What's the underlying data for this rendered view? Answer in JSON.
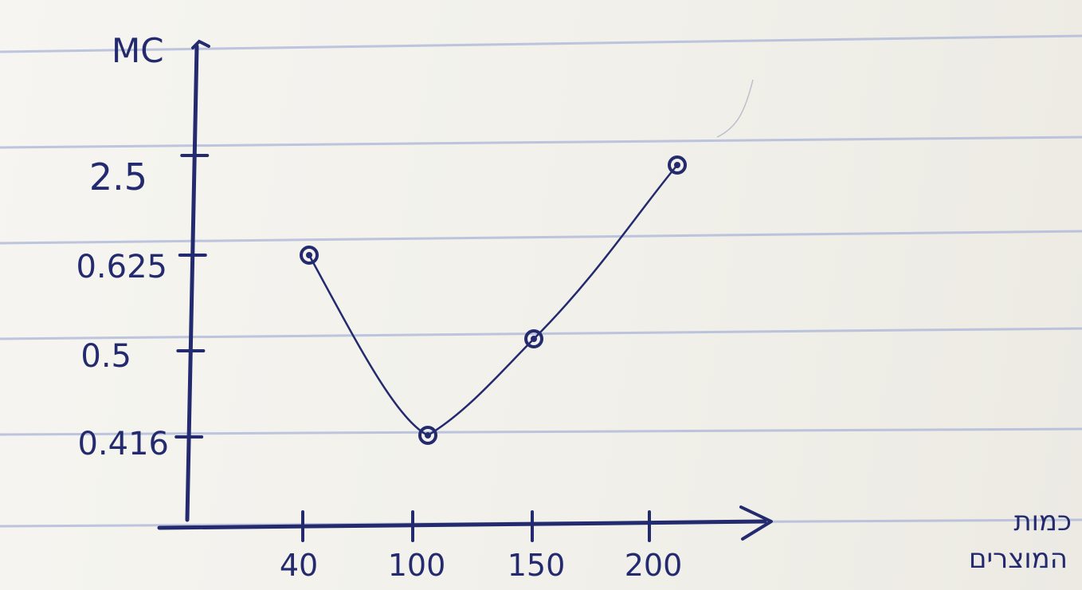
{
  "chart_data": {
    "type": "line",
    "ylabel": "MC",
    "xlabel": "כמות המוצרים",
    "xlabel_lines": [
      "כמות",
      "המוצרים"
    ],
    "categories": [
      "40",
      "100",
      "150",
      "200"
    ],
    "yticks": [
      "2.5",
      "0.625",
      "0.5",
      "0.416"
    ],
    "series": [
      {
        "values": [
          0.625,
          0.416,
          0.5,
          2.5
        ]
      }
    ],
    "grid": false,
    "legend": "none"
  },
  "colors": {
    "ink": "#242a6e",
    "paper": "#f4f3ef",
    "rule": "#a9b4d8"
  }
}
